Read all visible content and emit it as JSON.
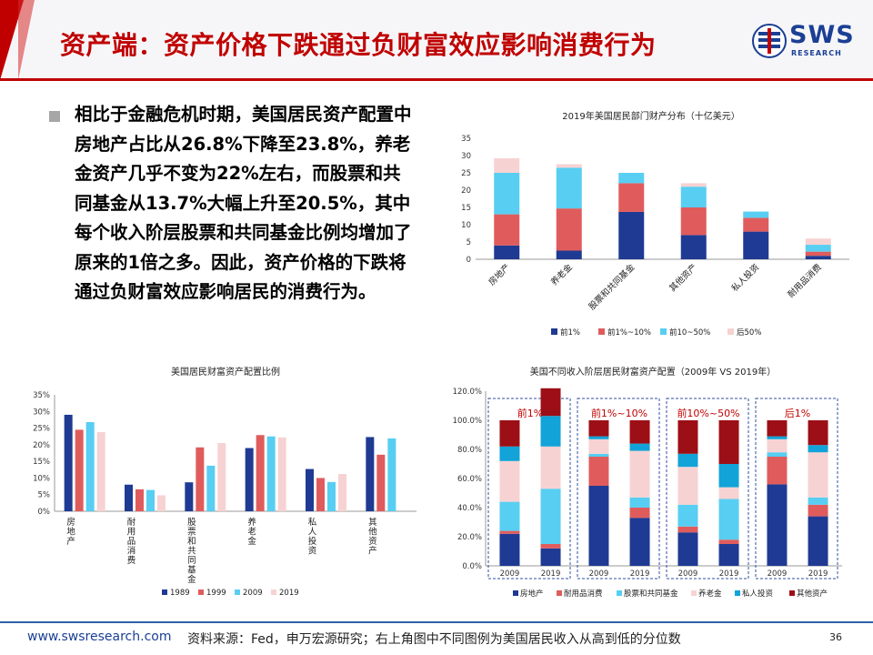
{
  "header": {
    "title": "资产端：资产价格下跌通过负财富效应影响消费行为",
    "logo_text": "SWS",
    "logo_sub": "RESEARCH"
  },
  "body": {
    "text": "相比于金融危机时期，美国居民资产配置中房地产占比从26.8%下降至23.8%，养老金资产几乎不变为22%左右，而股票和共同基金从13.7%大幅上升至20.5%，其中每个收入阶层股票和共同基金比例均增加了原来的1倍之多。因此，资产价格的下跌将通过负财富效应影响居民的消费行为。"
  },
  "footer": {
    "website": "www.swsresearch.com",
    "source": "资料来源：Fed，申万宏源研究；右上角图中不同图例为美国居民收入从高到低的分位数",
    "page": "36"
  },
  "colors": {
    "navy": "#1f3a93",
    "red": "#e05c5c",
    "cyan": "#58cef2",
    "pink": "#f7d2d2",
    "teal": "#12a3d8",
    "maroon": "#9c0f16",
    "header_red": "#c00000"
  },
  "chart_data": [
    {
      "id": "wealth_by_percentile_2019",
      "type": "stacked-bar",
      "title": "2019年美国居民部门财产分布（十亿美元）",
      "categories": [
        "房地产",
        "养老金",
        "股票和共同基金",
        "其他资产",
        "私人投资",
        "耐用品消费"
      ],
      "ylim": [
        0,
        35
      ],
      "yticks": [
        0,
        5,
        10,
        15,
        20,
        25,
        30,
        35
      ],
      "series": [
        {
          "name": "前1%",
          "color": "#1f3a93",
          "values": [
            4,
            2.5,
            13.7,
            7,
            8,
            1
          ]
        },
        {
          "name": "前1%~10%",
          "color": "#e05c5c",
          "values": [
            9,
            12.2,
            8.3,
            8,
            4,
            1.2
          ]
        },
        {
          "name": "前10~50%",
          "color": "#58cef2",
          "values": [
            12,
            11.8,
            3,
            6,
            1.8,
            2
          ]
        },
        {
          "name": "后50%",
          "color": "#f7d2d2",
          "values": [
            4.2,
            1,
            0,
            1,
            0,
            1.8
          ]
        }
      ]
    },
    {
      "id": "allocation_ratio",
      "type": "bar",
      "title": "美国居民财富资产配置比例",
      "categories": [
        "房地产",
        "耐用品消费",
        "股票和共同基金",
        "养老金",
        "私人投资",
        "其他资产"
      ],
      "ylim": [
        0,
        0.35
      ],
      "yticks": [
        0,
        0.05,
        0.1,
        0.15,
        0.2,
        0.25,
        0.3,
        0.35
      ],
      "ytick_labels": [
        "0%",
        "5%",
        "10%",
        "15%",
        "20%",
        "25%",
        "30%",
        "35%"
      ],
      "series": [
        {
          "name": "1989",
          "color": "#1f3a93",
          "values": [
            0.29,
            0.08,
            0.087,
            0.19,
            0.127,
            0.223
          ]
        },
        {
          "name": "1999",
          "color": "#e05c5c",
          "values": [
            0.245,
            0.066,
            0.192,
            0.229,
            0.1,
            0.17
          ]
        },
        {
          "name": "2009",
          "color": "#58cef2",
          "values": [
            0.268,
            0.064,
            0.137,
            0.225,
            0.088,
            0.219
          ]
        },
        {
          "name": "2019",
          "color": "#f7d2d2",
          "values": [
            0.238,
            0.048,
            0.205,
            0.222,
            0.112,
            null
          ]
        }
      ]
    },
    {
      "id": "allocation_by_income",
      "type": "stacked-bar-100",
      "title": "美国不同收入阶层居民财富资产配置（2009年 VS 2019年）",
      "groups": [
        "前1%",
        "前1%~10%",
        "前10%~50%",
        "后1%"
      ],
      "x": [
        "2009",
        "2019",
        "2009",
        "2019",
        "2009",
        "2019",
        "2009",
        "2019"
      ],
      "ylim": [
        0,
        1.2
      ],
      "yticks": [
        0,
        0.2,
        0.4,
        0.6,
        0.8,
        1.0,
        1.2
      ],
      "ytick_labels": [
        "0.0%",
        "20.0%",
        "40.0%",
        "60.0%",
        "80.0%",
        "100.0%",
        "120.0%"
      ],
      "series": [
        {
          "name": "房地产",
          "color": "#1f3a93",
          "values": [
            0.22,
            0.12,
            0.55,
            0.33,
            0.23,
            0.15,
            0.56,
            0.34
          ]
        },
        {
          "name": "耐用品消费",
          "color": "#e05c5c",
          "values": [
            0.02,
            0.03,
            0.2,
            0.07,
            0.04,
            0.03,
            0.19,
            0.08
          ]
        },
        {
          "name": "股票和共同基金",
          "color": "#58cef2",
          "values": [
            0.2,
            0.38,
            0.02,
            0.07,
            0.15,
            0.28,
            0.03,
            0.05
          ]
        },
        {
          "name": "养老金",
          "color": "#f7d2d2",
          "values": [
            0.28,
            0.29,
            0.1,
            0.32,
            0.26,
            0.08,
            0.09,
            0.31
          ]
        },
        {
          "name": "私人投资",
          "color": "#12a3d8",
          "values": [
            0.1,
            0.21,
            0.02,
            0.05,
            0.09,
            0.16,
            0.02,
            0.05
          ]
        },
        {
          "name": "其他资产",
          "color": "#9c0f16",
          "values": [
            0.18,
            0.19,
            0.11,
            0.16,
            0.23,
            0.3,
            0.11,
            0.17
          ]
        }
      ]
    }
  ]
}
